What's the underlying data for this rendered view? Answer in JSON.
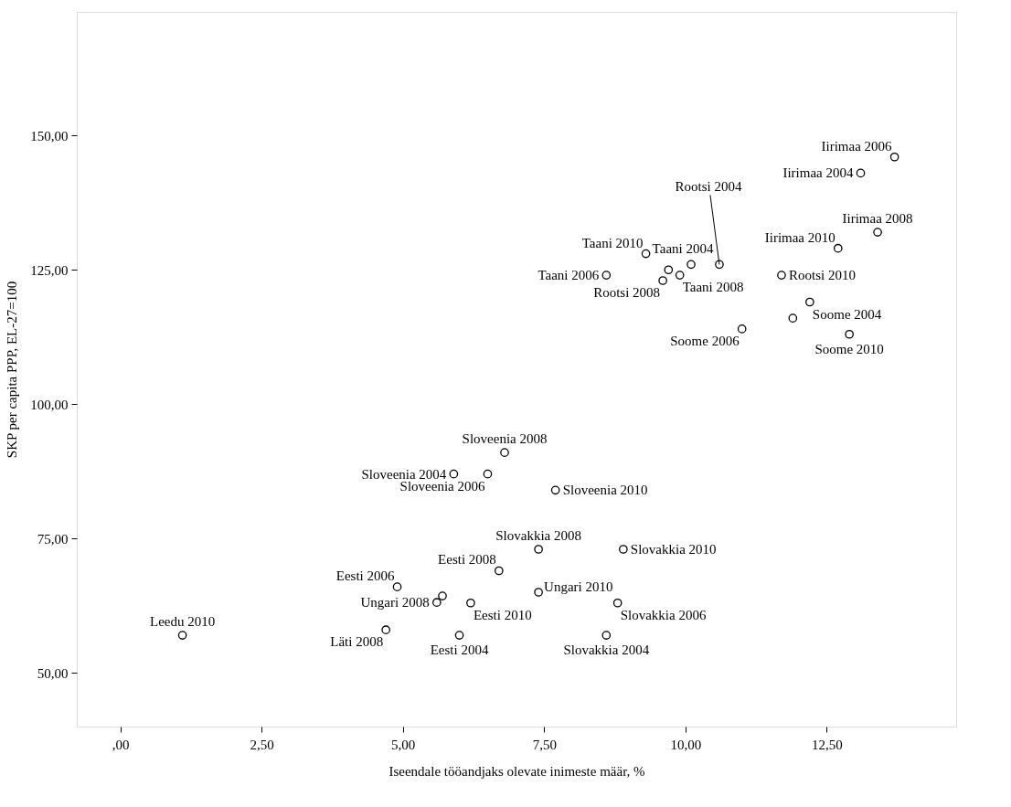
{
  "chart_data": {
    "type": "scatter",
    "xlabel": "Iseendale tööandjaks olevate inimeste määr, %",
    "ylabel": "SKP per capita PPP, EL-27=100",
    "xlim": [
      -0.77,
      14.79
    ],
    "ylim": [
      40,
      173
    ],
    "xticks": [
      {
        "value": 0,
        "label": ",00"
      },
      {
        "value": 2.5,
        "label": "2,50"
      },
      {
        "value": 5,
        "label": "5,00"
      },
      {
        "value": 7.5,
        "label": "7,50"
      },
      {
        "value": 10,
        "label": "10,00"
      },
      {
        "value": 12.5,
        "label": "12,50"
      }
    ],
    "yticks": [
      {
        "value": 50,
        "label": "50,00"
      },
      {
        "value": 75,
        "label": "75,00"
      },
      {
        "value": 100,
        "label": "100,00"
      },
      {
        "value": 125,
        "label": "125,00"
      },
      {
        "value": 150,
        "label": "150,00"
      }
    ],
    "grid": false,
    "marker": "circle",
    "series": [
      {
        "color": "#000000",
        "x": [
          13.7,
          13.1,
          10.6,
          12.7,
          13.4,
          9.3,
          10.1,
          8.6,
          9.7,
          9.9,
          9.6,
          11.7,
          12.2,
          11.9,
          11.0,
          12.9,
          6.8,
          5.9,
          6.5,
          7.7,
          7.4,
          8.9,
          6.7,
          4.9,
          7.4,
          5.7,
          5.6,
          6.2,
          8.8,
          1.1,
          4.7,
          6.0,
          8.6
        ],
        "values": [
          146,
          143,
          126,
          129,
          132,
          128,
          126,
          124,
          125,
          124,
          123,
          124,
          119,
          116,
          114,
          113,
          91,
          87,
          87,
          84,
          73,
          73,
          69,
          66,
          65,
          64.3,
          63.1,
          63,
          63,
          57,
          58,
          57,
          57
        ]
      }
    ],
    "annotations": [
      {
        "text": "Iirimaa 2006",
        "x": 13.7,
        "y": 146
      },
      {
        "text": "Iirimaa 2004",
        "x": 13.1,
        "y": 143
      },
      {
        "text": "Rootsi 2004",
        "x": 10.6,
        "y": 126
      },
      {
        "text": "Iirimaa 2010",
        "x": 12.7,
        "y": 129
      },
      {
        "text": "Iirimaa 2008",
        "x": 13.4,
        "y": 132
      },
      {
        "text": "Taani 2010",
        "x": 9.3,
        "y": 128
      },
      {
        "text": "Taani 2004",
        "x": 10.1,
        "y": 126
      },
      {
        "text": "Taani 2006",
        "x": 8.6,
        "y": 124
      },
      {
        "text": "Taani 2008",
        "x": 9.9,
        "y": 124
      },
      {
        "text": "Rootsi 2008",
        "x": 9.6,
        "y": 123
      },
      {
        "text": "Rootsi 2010",
        "x": 11.7,
        "y": 124
      },
      {
        "text": "Soome 2004",
        "x": 12.2,
        "y": 119
      },
      {
        "text": "Soome 2006",
        "x": 11.0,
        "y": 114
      },
      {
        "text": "Soome 2010",
        "x": 12.9,
        "y": 113
      },
      {
        "text": "Sloveenia 2008",
        "x": 6.8,
        "y": 91
      },
      {
        "text": "Sloveenia 2004",
        "x": 5.9,
        "y": 87
      },
      {
        "text": "Sloveenia 2006",
        "x": 6.5,
        "y": 87
      },
      {
        "text": "Sloveenia 2010",
        "x": 7.7,
        "y": 84
      },
      {
        "text": "Slovakkia 2008",
        "x": 7.4,
        "y": 73
      },
      {
        "text": "Slovakkia 2010",
        "x": 8.9,
        "y": 73
      },
      {
        "text": "Eesti 2008",
        "x": 6.7,
        "y": 69
      },
      {
        "text": "Eesti 2006",
        "x": 4.9,
        "y": 66
      },
      {
        "text": "Ungari 2010",
        "x": 7.4,
        "y": 65
      },
      {
        "text": "Ungari 2008",
        "x": 5.6,
        "y": 63.1
      },
      {
        "text": "Eesti 2010",
        "x": 6.2,
        "y": 63
      },
      {
        "text": "Slovakkia 2006",
        "x": 8.8,
        "y": 63
      },
      {
        "text": "Leedu 2010",
        "x": 1.1,
        "y": 57
      },
      {
        "text": "Läti 2008",
        "x": 4.7,
        "y": 58
      },
      {
        "text": "Eesti 2004",
        "x": 6.0,
        "y": 57
      },
      {
        "text": "Slovakkia 2004",
        "x": 8.6,
        "y": 57
      }
    ]
  }
}
